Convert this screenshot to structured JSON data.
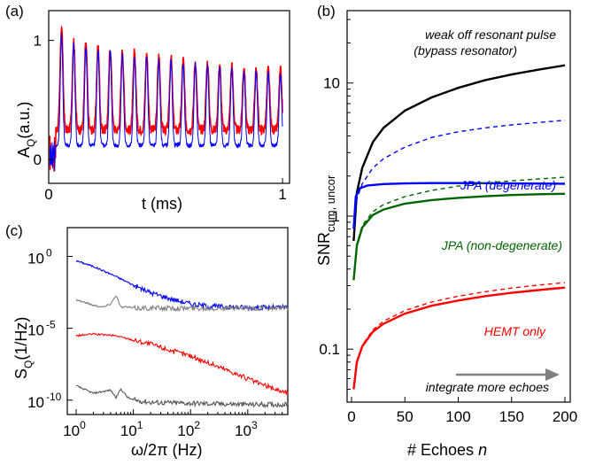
{
  "chart_data": [
    {
      "panel": "(a)",
      "type": "line",
      "xlabel": "t (ms)",
      "ylabel_main": "A",
      "ylabel_sub": "Q",
      "ylabel_unit": "(a.u.)",
      "xlim": [
        0,
        1.03
      ],
      "ylim": [
        -0.2,
        1.25
      ],
      "x_ticks": [
        0,
        1
      ],
      "y_ticks": [
        0,
        1
      ],
      "echo_period_ms": 0.052,
      "series": [
        {
          "color": "#ff0000",
          "peaks": [
            1.12,
            1.0,
            0.98,
            0.96,
            0.94,
            0.92,
            0.9,
            0.89,
            0.87,
            0.86,
            0.84,
            0.83,
            0.82,
            0.8,
            0.79,
            0.78,
            0.77,
            0.76,
            0.75
          ]
        },
        {
          "color": "#0000ff",
          "peaks": [
            1.05,
            0.97,
            0.95,
            0.93,
            0.91,
            0.89,
            0.87,
            0.86,
            0.84,
            0.83,
            0.81,
            0.8,
            0.79,
            0.77,
            0.76,
            0.75,
            0.74,
            0.73,
            0.72
          ]
        }
      ]
    },
    {
      "panel": "(b)",
      "type": "line",
      "xlabel": "# Echoes",
      "xlabel_var": "n",
      "ylabel_main": "SNR",
      "ylabel_sub": "cum, uncor",
      "yscale": "log",
      "xlim": [
        0,
        200
      ],
      "ylim": [
        0.04,
        35
      ],
      "x_ticks": [
        0,
        50,
        100,
        150,
        200
      ],
      "y_ticks": [
        0.1,
        1,
        10
      ],
      "y_tick_labels": [
        "0.1",
        "1",
        "10"
      ],
      "annotations": {
        "line1": "weak off resonant pulse",
        "line2": "(bypass resonator)",
        "jpa_deg": "JPA (degenerate)",
        "jpa_nondeg": "JPA (non-degenerate)",
        "hemt": "HEMT only",
        "arrow": "integrate more echoes"
      },
      "series": [
        {
          "color": "#000000",
          "dash": false,
          "n": [
            2,
            5,
            10,
            20,
            30,
            50,
            75,
            100,
            125,
            150,
            175,
            200
          ],
          "snr": [
            0.65,
            1.5,
            2.3,
            3.6,
            4.6,
            6.2,
            7.8,
            9.2,
            10.5,
            11.6,
            12.6,
            13.6
          ]
        },
        {
          "color": "#0000ff",
          "dash": true,
          "n": [
            2,
            5,
            10,
            20,
            30,
            50,
            75,
            100,
            125,
            150,
            175,
            200
          ],
          "snr": [
            0.85,
            1.35,
            1.75,
            2.3,
            2.7,
            3.3,
            3.9,
            4.3,
            4.6,
            4.85,
            5.05,
            5.25
          ]
        },
        {
          "color": "#0000ff",
          "dash": false,
          "n": [
            2,
            4,
            8,
            15,
            30,
            50,
            75,
            100,
            150,
            200
          ],
          "snr": [
            0.8,
            1.4,
            1.62,
            1.7,
            1.74,
            1.76,
            1.77,
            1.77,
            1.76,
            1.75
          ]
        },
        {
          "color": "#006400",
          "dash": true,
          "n": [
            2,
            5,
            10,
            20,
            30,
            50,
            75,
            100,
            125,
            150,
            175,
            200
          ],
          "snr": [
            0.34,
            0.62,
            0.85,
            1.08,
            1.22,
            1.4,
            1.56,
            1.68,
            1.77,
            1.84,
            1.9,
            1.96
          ]
        },
        {
          "color": "#006400",
          "dash": false,
          "n": [
            2,
            5,
            10,
            20,
            30,
            50,
            75,
            100,
            125,
            150,
            175,
            200
          ],
          "snr": [
            0.33,
            0.6,
            0.82,
            1.02,
            1.12,
            1.24,
            1.32,
            1.37,
            1.41,
            1.44,
            1.46,
            1.47
          ]
        },
        {
          "color": "#ff0000",
          "dash": true,
          "n": [
            2,
            5,
            10,
            20,
            30,
            50,
            75,
            100,
            125,
            150,
            175,
            200
          ],
          "snr": [
            0.05,
            0.08,
            0.107,
            0.14,
            0.162,
            0.195,
            0.226,
            0.25,
            0.27,
            0.288,
            0.303,
            0.316
          ]
        },
        {
          "color": "#ff0000",
          "dash": false,
          "n": [
            2,
            5,
            10,
            20,
            30,
            50,
            75,
            100,
            125,
            150,
            175,
            200
          ],
          "snr": [
            0.05,
            0.08,
            0.105,
            0.135,
            0.155,
            0.185,
            0.212,
            0.232,
            0.25,
            0.265,
            0.278,
            0.29
          ]
        }
      ]
    },
    {
      "panel": "(c)",
      "type": "line",
      "xlabel": "ω/2π (Hz)",
      "ylabel_main": "S",
      "ylabel_sub": "Q",
      "ylabel_unit": "(1/Hz)",
      "xscale": "log",
      "yscale": "log",
      "xlim": [
        0.7,
        5000
      ],
      "ylim": [
        1e-11,
        100.0
      ],
      "x_ticks": [
        1,
        10,
        100,
        1000
      ],
      "x_tick_exponents": [
        "0",
        "1",
        "2",
        "3"
      ],
      "y_ticks": [
        1,
        1e-05,
        1e-10
      ],
      "y_tick_exponents": [
        "0",
        "-5",
        "-10"
      ],
      "series": [
        {
          "color": "#0000ff",
          "freq": [
            1,
            2,
            5,
            10,
            20,
            50,
            100,
            200,
            500,
            1000,
            2000,
            5000
          ],
          "psd": [
            0.5,
            0.2,
            0.04,
            0.01,
            0.003,
            0.001,
            0.0005,
            0.00035,
            0.0003,
            0.00028,
            0.00028,
            0.00028
          ]
        },
        {
          "color": "#808080",
          "freq": [
            1,
            2,
            3,
            4,
            5,
            6,
            8,
            10,
            100,
            1000,
            5000
          ],
          "psd": [
            0.001,
            0.0004,
            0.0003,
            0.0005,
            0.002,
            0.0003,
            0.0003,
            0.00025,
            0.00025,
            0.00025,
            0.00025
          ]
        },
        {
          "color": "#ff0000",
          "freq": [
            1,
            2,
            5,
            10,
            20,
            50,
            100,
            200,
            500,
            1000,
            2000,
            5000
          ],
          "psd": [
            3e-06,
            4e-06,
            3e-06,
            1.5e-06,
            8e-07,
            2.5e-07,
            1.2e-07,
            4e-08,
            1e-08,
            3e-09,
            1e-09,
            3e-10
          ]
        },
        {
          "color": "#555555",
          "freq": [
            1,
            2,
            4,
            5,
            6,
            8,
            10,
            20,
            100,
            1000,
            5000
          ],
          "psd": [
            1e-09,
            3e-10,
            5e-10,
            1.5e-10,
            6e-10,
            1.5e-10,
            1e-10,
            7e-11,
            6e-11,
            5e-11,
            5e-11
          ]
        }
      ]
    }
  ]
}
